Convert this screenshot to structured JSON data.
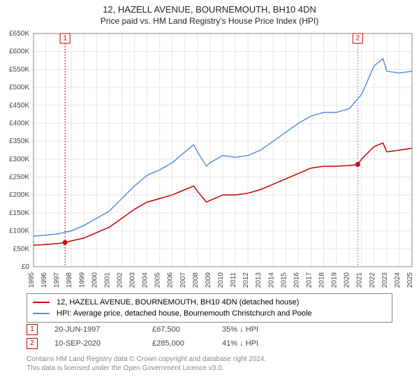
{
  "title_main": "12, HAZELL AVENUE, BOURNEMOUTH, BH10 4DN",
  "title_sub": "Price paid vs. HM Land Registry's House Price Index (HPI)",
  "chart": {
    "type": "line",
    "background_color": "#ffffff",
    "grid_color": "#e6e6e6",
    "axis_color": "#888888",
    "ylim": [
      0,
      650000
    ],
    "ytick_step": 50000,
    "yticks": [
      "£0",
      "£50K",
      "£100K",
      "£150K",
      "£200K",
      "£250K",
      "£300K",
      "£350K",
      "£400K",
      "£450K",
      "£500K",
      "£550K",
      "£600K",
      "£650K"
    ],
    "xlim": [
      1995,
      2025
    ],
    "xticks": [
      "1995",
      "1996",
      "1997",
      "1998",
      "1999",
      "2000",
      "2001",
      "2002",
      "2003",
      "2004",
      "2005",
      "2006",
      "2007",
      "2008",
      "2009",
      "2010",
      "2011",
      "2012",
      "2013",
      "2014",
      "2015",
      "2016",
      "2017",
      "2018",
      "2019",
      "2020",
      "2021",
      "2022",
      "2023",
      "2024",
      "2025"
    ],
    "label_fontsize": 10,
    "series": [
      {
        "name": "property",
        "color": "#cc0000",
        "line_width": 1.5,
        "points": [
          [
            1995,
            60000
          ],
          [
            1996,
            62000
          ],
          [
            1997,
            65000
          ],
          [
            1997.5,
            67500
          ],
          [
            1998,
            72000
          ],
          [
            1999,
            80000
          ],
          [
            2000,
            95000
          ],
          [
            2001,
            110000
          ],
          [
            2002,
            135000
          ],
          [
            2003,
            160000
          ],
          [
            2004,
            180000
          ],
          [
            2005,
            190000
          ],
          [
            2006,
            200000
          ],
          [
            2007,
            215000
          ],
          [
            2007.7,
            225000
          ],
          [
            2008,
            210000
          ],
          [
            2008.7,
            180000
          ],
          [
            2009,
            185000
          ],
          [
            2010,
            200000
          ],
          [
            2011,
            200000
          ],
          [
            2012,
            205000
          ],
          [
            2013,
            215000
          ],
          [
            2014,
            230000
          ],
          [
            2015,
            245000
          ],
          [
            2016,
            260000
          ],
          [
            2017,
            275000
          ],
          [
            2018,
            280000
          ],
          [
            2019,
            280000
          ],
          [
            2020,
            282000
          ],
          [
            2020.7,
            285000
          ],
          [
            2021,
            300000
          ],
          [
            2022,
            335000
          ],
          [
            2022.7,
            345000
          ],
          [
            2023,
            320000
          ],
          [
            2024,
            325000
          ],
          [
            2025,
            330000
          ]
        ]
      },
      {
        "name": "hpi",
        "color": "#5b8fd6",
        "line_width": 1.5,
        "points": [
          [
            1995,
            85000
          ],
          [
            1996,
            88000
          ],
          [
            1997,
            92000
          ],
          [
            1998,
            100000
          ],
          [
            1999,
            115000
          ],
          [
            2000,
            135000
          ],
          [
            2001,
            155000
          ],
          [
            2002,
            190000
          ],
          [
            2003,
            225000
          ],
          [
            2004,
            255000
          ],
          [
            2005,
            270000
          ],
          [
            2006,
            290000
          ],
          [
            2007,
            320000
          ],
          [
            2007.7,
            340000
          ],
          [
            2008,
            320000
          ],
          [
            2008.7,
            280000
          ],
          [
            2009,
            290000
          ],
          [
            2010,
            310000
          ],
          [
            2011,
            305000
          ],
          [
            2012,
            310000
          ],
          [
            2013,
            325000
          ],
          [
            2014,
            350000
          ],
          [
            2015,
            375000
          ],
          [
            2016,
            400000
          ],
          [
            2017,
            420000
          ],
          [
            2018,
            430000
          ],
          [
            2019,
            430000
          ],
          [
            2020,
            440000
          ],
          [
            2021,
            480000
          ],
          [
            2022,
            560000
          ],
          [
            2022.7,
            580000
          ],
          [
            2023,
            545000
          ],
          [
            2024,
            540000
          ],
          [
            2025,
            545000
          ]
        ]
      }
    ],
    "markers": [
      {
        "id": "1",
        "x": 1997.5,
        "y": 67500,
        "vline_color": "#cc0000",
        "dot_color": "#cc0000",
        "date": "20-JUN-1997",
        "price": "£67,500",
        "pct": "35% ↓ HPI"
      },
      {
        "id": "2",
        "x": 2020.7,
        "y": 285000,
        "vline_color": "#5b8fd6",
        "dot_color": "#cc0000",
        "date": "10-SEP-2020",
        "price": "£285,000",
        "pct": "41% ↓ HPI"
      }
    ]
  },
  "legend": {
    "items": [
      {
        "color": "#cc0000",
        "label": "12, HAZELL AVENUE, BOURNEMOUTH, BH10 4DN (detached house)"
      },
      {
        "color": "#5b8fd6",
        "label": "HPI: Average price, detached house, Bournemouth Christchurch and Poole"
      }
    ]
  },
  "attribution_line1": "Contains HM Land Registry data © Crown copyright and database right 2024.",
  "attribution_line2": "This data is licensed under the Open Government Licence v3.0."
}
